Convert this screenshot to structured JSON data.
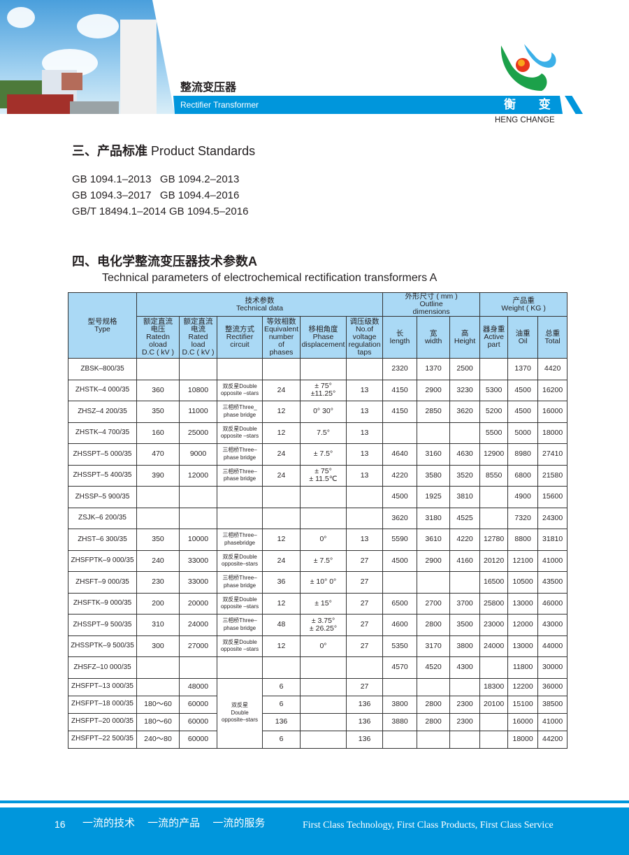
{
  "header": {
    "title_cn": "整流变压器",
    "title_en": "Rectifier Transformer",
    "brand_cn": "衡 变",
    "brand_en": "HENG CHANGE",
    "colors": {
      "accent": "#0096dc",
      "header_fill": "#aad9f5"
    }
  },
  "section3": {
    "title_cn": "三、产品标准",
    "title_en": "Product Standards",
    "standards": [
      "GB 1094.1–2013   GB 1094.2–2013",
      "GB 1094.3–2017   GB 1094.4–2016",
      "GB/T 18494.1–2014 GB 1094.5–2016"
    ]
  },
  "section4": {
    "title_cn": "四、电化学整流变压器技术参数A",
    "title_en": "Technical parameters of electrochemical rectification transformers A"
  },
  "table": {
    "group_headers": {
      "type": "型号规格\nType",
      "technical": "技术参数\nTechnical  data",
      "outline": "外形尺寸 ( mm )\nOutline\ndimensions",
      "weight": "产品重\nWeight ( KG )"
    },
    "columns": [
      "额定直流\n电压\nRatedn\noload\nD.C ( kV )",
      "额定直流\n电流\nRated\nload\nD.C ( kV )",
      "整流方式\nRectifier\ncircuit",
      "等效相数\nEquivalent\nnumber\nof\nphases",
      "移相角度\nPhase\ndisplacement",
      "调压级数\nNo.of\nvoltage\nregulation\ntaps",
      "长\nlength",
      "宽\nwidth",
      "高\nHeight",
      "器身重\nActive\npart",
      "油重\nOil",
      "总重\nTotal"
    ],
    "rows": [
      [
        "ZBSK–800/35",
        "",
        "",
        "",
        "",
        "",
        "",
        "2320",
        "1370",
        "2500",
        "",
        "1370",
        "4420"
      ],
      [
        "ZHSTK–4 000/35",
        "360",
        "10800",
        "双反星Double\nopposite –stars",
        "24",
        "± 75°\n±11.25°",
        "13",
        "4150",
        "2900",
        "3230",
        "5300",
        "4500",
        "16200"
      ],
      [
        "ZHSZ–4 200/35",
        "350",
        "11000",
        "三相桥Three_\nphase bridge",
        "12",
        "0°  30°",
        "13",
        "4150",
        "2850",
        "3620",
        "5200",
        "4500",
        "16000"
      ],
      [
        "ZHSTK–4 700/35",
        "160",
        "25000",
        "双反星Double\nopposite –stars",
        "12",
        "7.5°",
        "13",
        "",
        "",
        "",
        "5500",
        "5000",
        "18000"
      ],
      [
        "ZHSSPT–5 000/35",
        "470",
        "9000",
        "三相桥Three–\nphase bridge",
        "24",
        "± 7.5°",
        "13",
        "4640",
        "3160",
        "4630",
        "12900",
        "8980",
        "27410"
      ],
      [
        "ZHSSPT–5 400/35",
        "390",
        "12000",
        "三相桥Three–\nphase bridge",
        "24",
        "± 75°\n± 11.5℃",
        "13",
        "4220",
        "3580",
        "3520",
        "8550",
        "6800",
        "21580"
      ],
      [
        "ZHSSP–5 900/35",
        "",
        "",
        "",
        "",
        "",
        "",
        "4500",
        "1925",
        "3810",
        "",
        "4900",
        "15600"
      ],
      [
        "ZSJK–6 200/35",
        "",
        "",
        "",
        "",
        "",
        "",
        "3620",
        "3180",
        "4525",
        "",
        "7320",
        "24300"
      ],
      [
        "ZHST–6 300/35",
        "350",
        "10000",
        "三相桥Three–\nphasebridge",
        "12",
        "0°",
        "13",
        "5590",
        "3610",
        "4220",
        "12780",
        "8800",
        "31810"
      ],
      [
        "ZHSFPTK–9 000/35",
        "240",
        "33000",
        "双反星Double\nopposite–stars",
        "24",
        "± 7.5°",
        "27",
        "4500",
        "2900",
        "4160",
        "20120",
        "12100",
        "41000"
      ],
      [
        "ZHSFT–9 000/35",
        "230",
        "33000",
        "三相桥Three–\nphase bridge",
        "36",
        "± 10°  0°",
        "27",
        "",
        "",
        "",
        "16500",
        "10500",
        "43500"
      ],
      [
        "ZHSFTK–9 000/35",
        "200",
        "20000",
        "双反星Double\nopposite –stars",
        "12",
        "± 15°",
        "27",
        "6500",
        "2700",
        "3700",
        "25800",
        "13000",
        "46000"
      ],
      [
        "ZHSSPT–9 500/35",
        "310",
        "24000",
        "三相桥Three–\nphase  bridge",
        "48",
        "± 3.75°\n± 26.25°",
        "27",
        "4600",
        "2800",
        "3500",
        "23000",
        "12000",
        "43000"
      ],
      [
        "ZHSSPTK–9 500/35",
        "300",
        "27000",
        "双反星Double\nopposite –stars",
        "12",
        "0°",
        "27",
        "5350",
        "3170",
        "3800",
        "24000",
        "13000",
        "44000"
      ],
      [
        "ZHSFZ–10 000/35",
        "",
        "",
        "",
        "",
        "",
        "",
        "4570",
        "4520",
        "4300",
        "",
        "11800",
        "30000"
      ],
      [
        "ZHSFPT–13 000/35",
        "",
        "48000",
        "双反星\nDouble\nopposite–stars",
        "6",
        "",
        "27",
        "",
        "",
        "",
        "18300",
        "12200",
        "36000"
      ],
      [
        "ZHSFPT–18 000/35",
        "180～60",
        "60000",
        null,
        "6",
        "",
        "136",
        "3800",
        "2800",
        "2300",
        "20100",
        "15100",
        "38500"
      ],
      [
        "ZHSFPT–20 000/35",
        "180～60",
        "60000",
        null,
        "136",
        "",
        "136",
        "3880",
        "2800",
        "2300",
        "",
        "16000",
        "41000"
      ],
      [
        "ZHSFPT–22 500/35",
        "240～80",
        "60000",
        null,
        "6",
        "",
        "136",
        "",
        "",
        "",
        "",
        "18000",
        "44200"
      ]
    ]
  },
  "footer": {
    "page": "16",
    "slogan_cn": "一流的技术 一流的产品 一流的服务",
    "slogan_en": "First Class Technology, First Class Products, First Class Service"
  }
}
